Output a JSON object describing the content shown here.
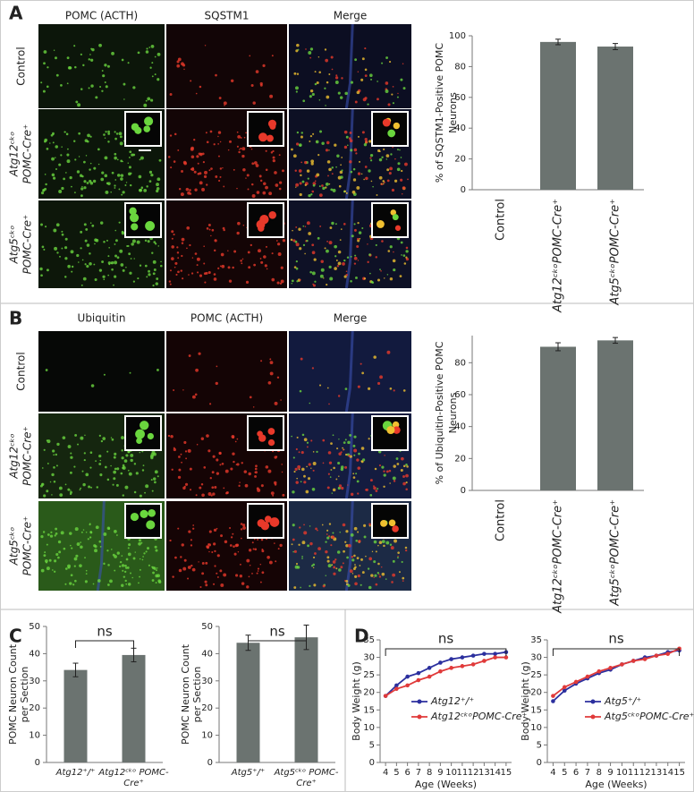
{
  "panel_labels": [
    "A",
    "B",
    "C",
    "D"
  ],
  "image_panels": [
    {
      "columns": [
        "POMC (ACTH)",
        "SQSTM1",
        "Merge"
      ],
      "rows": [
        [
          "Control"
        ],
        [
          "Atg12ᶜᵏᵒ",
          "POMC-Cre⁺"
        ],
        [
          "Atg5ᶜᵏᵒ",
          "POMC-Cre⁺"
        ]
      ]
    },
    {
      "columns": [
        "Ubiquitin",
        "POMC (ACTH)",
        "Merge"
      ],
      "rows": [
        [
          "Control"
        ],
        [
          "Atg12ᶜᵏᵒ",
          "POMC-Cre⁺"
        ],
        [
          "Atg5ᶜᵏᵒ",
          "POMC-Cre⁺"
        ]
      ]
    }
  ],
  "chart_data": [
    {
      "type": "bar",
      "ylabel": [
        "% of SQSTM1-Positive POMC",
        "Neurons"
      ],
      "categories": [
        "Control",
        "Atg12ᶜᵏᵒPOMC-Cre⁺",
        "Atg5ᶜᵏᵒPOMC-Cre⁺"
      ],
      "values": [
        0,
        96,
        93
      ],
      "errors": [
        0,
        1.8,
        2
      ],
      "color": "#6b7370",
      "ylim": [
        0,
        100
      ],
      "yticks": [
        0,
        20,
        40,
        60,
        80,
        100
      ]
    },
    {
      "type": "bar",
      "ylabel": [
        "% of Ubiquitin-Positive POMC",
        "Neurons"
      ],
      "categories": [
        "Control",
        "Atg12ᶜᵏᵒPOMC-Cre⁺",
        "Atg5ᶜᵏᵒPOMC-Cre⁺"
      ],
      "values": [
        0,
        90,
        94
      ],
      "errors": [
        0,
        2.5,
        1.8
      ],
      "color": "#6b7370",
      "ylim": [
        0,
        97
      ],
      "yticks": [
        0,
        20,
        40,
        60,
        80
      ]
    },
    {
      "type": "bar",
      "ylabel": [
        "POMC Neuron Count",
        "per Section"
      ],
      "annotation": "ns",
      "categories": [
        "Atg12⁺/⁺",
        "Atg12ᶜᵏᵒ POMC-Cre⁺"
      ],
      "values": [
        34,
        39.5
      ],
      "errors": [
        2.5,
        2.5
      ],
      "color": "#6b7370",
      "ylim": [
        0,
        50
      ],
      "yticks": [
        0,
        10,
        20,
        30,
        40,
        50
      ]
    },
    {
      "type": "bar",
      "ylabel": [
        "POMC Neuron Count",
        "per Section"
      ],
      "annotation": "ns",
      "categories": [
        "Atg5⁺/⁺",
        "Atg5ᶜᵏᵒ POMC-Cre⁺"
      ],
      "values": [
        44,
        46
      ],
      "errors": [
        2.8,
        4.5
      ],
      "color": "#6b7370",
      "ylim": [
        0,
        50
      ],
      "yticks": [
        0,
        10,
        20,
        30,
        40,
        50
      ]
    },
    {
      "type": "line",
      "ylabel": "Body Weight (g)",
      "xlabel": "Age (Weeks)",
      "annotation": "ns",
      "x": [
        4,
        5,
        6,
        7,
        8,
        9,
        10,
        11,
        12,
        13,
        14,
        15
      ],
      "series": [
        {
          "name": "Atg12⁺/⁺",
          "color": "#2b2f9e",
          "values": [
            19,
            22,
            24.5,
            25.5,
            27,
            28.5,
            29.5,
            30,
            30.5,
            31,
            31,
            31.5
          ]
        },
        {
          "name": "Atg12ᶜᵏᵒPOMC-Cre⁺",
          "color": "#e03a3a",
          "values": [
            19,
            21,
            22,
            23.5,
            24.5,
            26,
            27,
            27.5,
            28,
            29,
            30,
            30
          ]
        }
      ],
      "xlim": [
        3.5,
        15.5
      ],
      "xticks": [
        4,
        5,
        6,
        7,
        8,
        9,
        10,
        11,
        12,
        13,
        14,
        15
      ],
      "ylim": [
        0,
        35
      ],
      "yticks": [
        0,
        5,
        10,
        15,
        20,
        25,
        30,
        35
      ],
      "legend": "lower-right"
    },
    {
      "type": "line",
      "ylabel": "Body Weight (g)",
      "xlabel": "Age (Weeks)",
      "annotation": "ns",
      "x": [
        4,
        5,
        6,
        7,
        8,
        9,
        10,
        11,
        12,
        13,
        14,
        15
      ],
      "series": [
        {
          "name": "Atg5⁺/⁺",
          "color": "#2b2f9e",
          "values": [
            17.5,
            20.5,
            22.5,
            24,
            25.5,
            26.5,
            28,
            29,
            30,
            30.5,
            31.5,
            32
          ]
        },
        {
          "name": "Atg5ᶜᵏᵒPOMC-Cre⁺",
          "color": "#e03a3a",
          "values": [
            19,
            21.5,
            23,
            24.5,
            26,
            27,
            28,
            29,
            29.5,
            30.5,
            31,
            32.5
          ]
        }
      ],
      "xlim": [
        3.5,
        15.5
      ],
      "xticks": [
        4,
        5,
        6,
        7,
        8,
        9,
        10,
        11,
        12,
        13,
        14,
        15
      ],
      "ylim": [
        0,
        35
      ],
      "yticks": [
        0,
        5,
        10,
        15,
        20,
        25,
        30,
        35
      ],
      "legend": "lower-right"
    }
  ]
}
